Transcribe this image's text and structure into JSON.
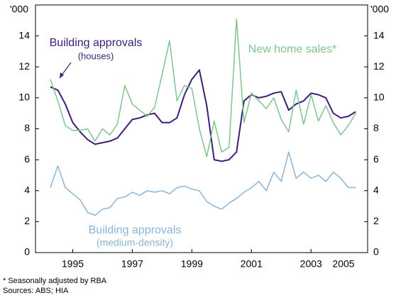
{
  "chart_data": {
    "type": "line",
    "y_unit_label": "'000",
    "x": [
      1994.25,
      1994.5,
      1994.75,
      1995,
      1995.25,
      1995.5,
      1995.75,
      1996,
      1996.25,
      1996.5,
      1996.75,
      1997,
      1997.25,
      1997.5,
      1997.75,
      1998,
      1998.25,
      1998.5,
      1998.75,
      1999,
      1999.25,
      1999.5,
      1999.75,
      2000,
      2000.25,
      2000.5,
      2000.75,
      2001,
      2001.25,
      2001.5,
      2001.75,
      2002,
      2002.25,
      2002.5,
      2002.75,
      2003,
      2003.25,
      2003.5,
      2003.75,
      2004,
      2004.25,
      2004.5
    ],
    "series": [
      {
        "name": "Building approvals (houses)",
        "color": "#3a1e78",
        "values": [
          10.7,
          10.5,
          9.6,
          8.4,
          7.8,
          7.3,
          7.0,
          7.1,
          7.2,
          7.4,
          8.0,
          8.6,
          8.7,
          8.9,
          9.0,
          8.4,
          8.4,
          8.7,
          10.2,
          11.2,
          11.8,
          9.5,
          6.0,
          5.9,
          6.0,
          6.5,
          9.8,
          10.2,
          10.0,
          10.1,
          10.3,
          10.4,
          9.2,
          9.6,
          9.8,
          10.3,
          10.2,
          10.0,
          9.0,
          8.7,
          8.8,
          9.1
        ]
      },
      {
        "name": "New home sales*",
        "color": "#7fc48f",
        "values": [
          11.2,
          9.8,
          8.2,
          7.9,
          7.9,
          8.0,
          7.2,
          8.0,
          7.6,
          8.3,
          10.8,
          9.6,
          9.2,
          8.8,
          9.4,
          11.5,
          13.7,
          9.8,
          10.8,
          10.6,
          8.0,
          6.2,
          8.5,
          6.5,
          6.8,
          15.1,
          8.4,
          10.3,
          9.8,
          9.3,
          10.0,
          8.6,
          7.8,
          10.5,
          8.3,
          10.2,
          8.5,
          9.5,
          8.4,
          7.6,
          8.2,
          9.0
        ]
      },
      {
        "name": "Building approvals (medium-density)",
        "color": "#8ab4d9",
        "values": [
          4.2,
          5.6,
          4.2,
          3.8,
          3.4,
          2.6,
          2.4,
          2.8,
          2.9,
          3.5,
          3.6,
          3.9,
          3.7,
          4.0,
          3.9,
          4.0,
          3.8,
          4.2,
          4.3,
          4.1,
          4.0,
          3.3,
          3.0,
          2.8,
          3.2,
          3.5,
          3.9,
          4.2,
          4.6,
          4.0,
          5.2,
          4.6,
          6.5,
          4.8,
          5.2,
          4.8,
          5.0,
          4.6,
          5.2,
          4.8,
          4.2,
          4.2
        ]
      }
    ],
    "annotations": [
      "Building approvals",
      "(houses)",
      "New home sales*",
      "Building approvals",
      "(medium-density)"
    ],
    "notes": [
      "*   Seasonally adjusted by RBA",
      "Sources: ABS; HIA"
    ],
    "xlim": [
      1993.75,
      2004.9
    ],
    "xticks": [
      1995,
      1997,
      1999,
      2001,
      2003,
      2005
    ],
    "ylim": [
      0,
      16
    ],
    "yticks": [
      0,
      2,
      4,
      6,
      8,
      10,
      12,
      14
    ],
    "y2lim": [
      0,
      16
    ],
    "y2ticks": [
      0,
      2,
      4,
      6,
      8,
      10,
      12,
      14
    ],
    "grid": false
  }
}
